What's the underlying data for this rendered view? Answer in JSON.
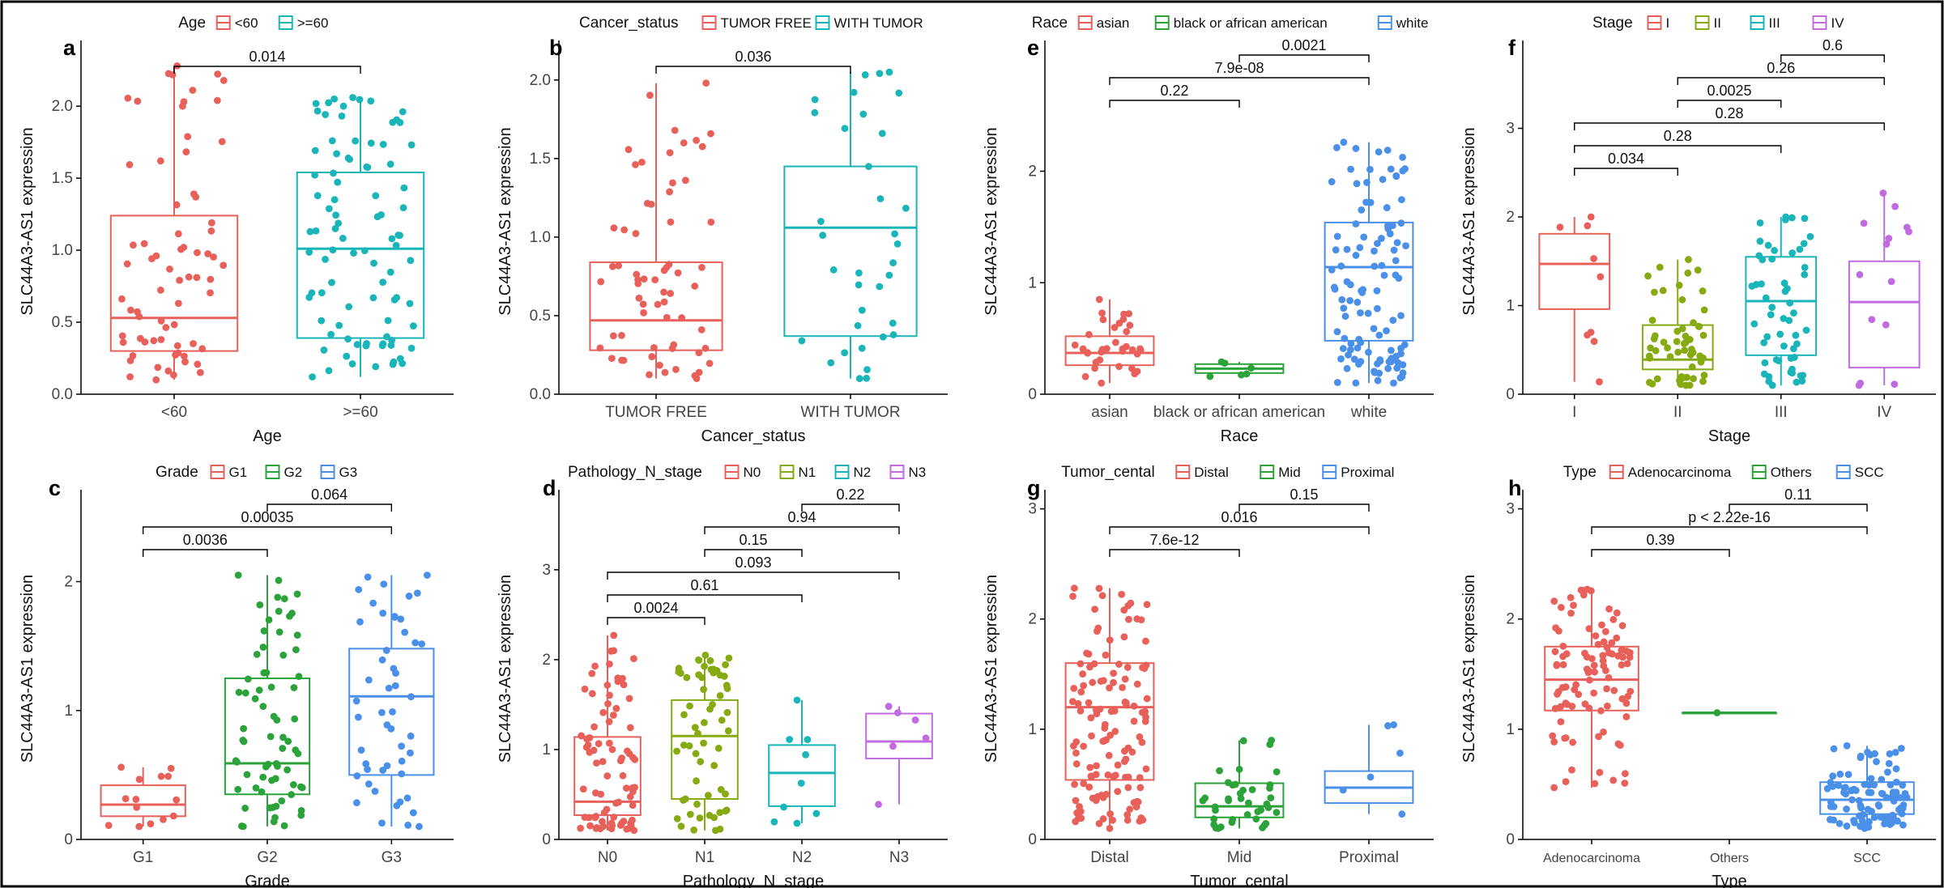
{
  "colors": {
    "red": "#E8605A",
    "green": "#2BA33A",
    "cyan": "#19B5B8",
    "blue": "#4A8FE8",
    "olive": "#87AA13",
    "purple": "#C16BE0"
  },
  "ylabel": "SLC44A3-AS1 expression",
  "chart_data": [
    {
      "type": "box",
      "panel": "a",
      "legend_title": "Age",
      "xlabel": "Age",
      "ylabel": "SLC44A3-AS1 expression",
      "ylim": [
        0,
        2.4
      ],
      "yticks": [
        "0.0",
        "0.5",
        "1.0",
        "1.5",
        "2.0"
      ],
      "categories": [
        "<60",
        ">=60"
      ],
      "colors": [
        "#E8605A",
        "#19B5B8"
      ],
      "boxes": [
        {
          "min": 0.1,
          "q1": 0.3,
          "median": 0.53,
          "q3": 1.24,
          "max": 2.28,
          "n": 70
        },
        {
          "min": 0.12,
          "q1": 0.39,
          "median": 1.01,
          "q3": 1.54,
          "max": 2.06,
          "n": 90
        }
      ],
      "comparisons": [
        {
          "from": 0,
          "to": 1,
          "label": "0.014"
        }
      ]
    },
    {
      "type": "box",
      "panel": "b",
      "legend_title": "Cancer_status",
      "xlabel": "Cancer_status",
      "ylabel": "SLC44A3-AS1 expression",
      "ylim": [
        0,
        2.2
      ],
      "yticks": [
        "0.0",
        "0.5",
        "1.0",
        "1.5",
        "2.0"
      ],
      "categories": [
        "TUMOR FREE",
        "WITH TUMOR"
      ],
      "colors": [
        "#E8605A",
        "#19B5B8"
      ],
      "boxes": [
        {
          "min": 0.1,
          "q1": 0.28,
          "median": 0.47,
          "q3": 0.84,
          "max": 1.98,
          "n": 65
        },
        {
          "min": 0.1,
          "q1": 0.37,
          "median": 1.06,
          "q3": 1.45,
          "max": 2.05,
          "n": 35
        }
      ],
      "comparisons": [
        {
          "from": 0,
          "to": 1,
          "label": "0.036"
        }
      ]
    },
    {
      "type": "box",
      "panel": "e",
      "legend_title": "Race",
      "xlabel": "Race",
      "ylabel": "SLC44A3-AS1 expression",
      "ylim": [
        0,
        3.1
      ],
      "yticks": [
        "0",
        "1",
        "2"
      ],
      "categories": [
        "asian",
        "black or african american",
        "white"
      ],
      "colors": [
        "#E8605A",
        "#2BA33A",
        "#4A8FE8"
      ],
      "boxes": [
        {
          "min": 0.1,
          "q1": 0.26,
          "median": 0.37,
          "q3": 0.52,
          "max": 0.85,
          "n": 35
        },
        {
          "min": 0.16,
          "q1": 0.19,
          "median": 0.23,
          "q3": 0.27,
          "max": 0.29,
          "n": 6
        },
        {
          "min": 0.1,
          "q1": 0.48,
          "median": 1.14,
          "q3": 1.54,
          "max": 2.26,
          "n": 110
        }
      ],
      "comparisons": [
        {
          "from": 1,
          "to": 2,
          "label": "0.0021"
        },
        {
          "from": 0,
          "to": 2,
          "label": "7.9e-08"
        },
        {
          "from": 0,
          "to": 1,
          "label": "0.22"
        }
      ]
    },
    {
      "type": "box",
      "panel": "f",
      "legend_title": "Stage",
      "xlabel": "Stage",
      "ylabel": "SLC44A3-AS1 expression",
      "ylim": [
        0,
        3.9
      ],
      "yticks": [
        "0",
        "1",
        "2",
        "3"
      ],
      "categories": [
        "I",
        "II",
        "III",
        "IV"
      ],
      "colors": [
        "#E8605A",
        "#87AA13",
        "#19B5B8",
        "#C16BE0"
      ],
      "boxes": [
        {
          "min": 0.14,
          "q1": 0.96,
          "median": 1.47,
          "q3": 1.81,
          "max": 2.0,
          "n": 9
        },
        {
          "min": 0.1,
          "q1": 0.28,
          "median": 0.39,
          "q3": 0.78,
          "max": 1.52,
          "n": 55
        },
        {
          "min": 0.1,
          "q1": 0.44,
          "median": 1.05,
          "q3": 1.55,
          "max": 2.0,
          "n": 55
        },
        {
          "min": 0.1,
          "q1": 0.3,
          "median": 1.04,
          "q3": 1.5,
          "max": 2.27,
          "n": 14
        }
      ],
      "comparisons": [
        {
          "from": 2,
          "to": 3,
          "label": "0.6"
        },
        {
          "from": 1,
          "to": 3,
          "label": "0.26"
        },
        {
          "from": 1,
          "to": 2,
          "label": "0.0025"
        },
        {
          "from": 0,
          "to": 3,
          "label": "0.28"
        },
        {
          "from": 0,
          "to": 2,
          "label": "0.28"
        },
        {
          "from": 0,
          "to": 1,
          "label": "0.034"
        }
      ]
    },
    {
      "type": "box",
      "panel": "c",
      "legend_title": "Grade",
      "xlabel": "Grade",
      "ylabel": "SLC44A3-AS1 expression",
      "ylim": [
        0,
        2.65
      ],
      "yticks": [
        "0",
        "1",
        "2"
      ],
      "categories": [
        "G1",
        "G2",
        "G3"
      ],
      "colors": [
        "#E8605A",
        "#2BA33A",
        "#4A8FE8"
      ],
      "boxes": [
        {
          "min": 0.1,
          "q1": 0.18,
          "median": 0.27,
          "q3": 0.42,
          "max": 0.56,
          "n": 14
        },
        {
          "min": 0.1,
          "q1": 0.35,
          "median": 0.59,
          "q3": 1.25,
          "max": 2.05,
          "n": 70
        },
        {
          "min": 0.1,
          "q1": 0.5,
          "median": 1.11,
          "q3": 1.48,
          "max": 2.05,
          "n": 50
        }
      ],
      "comparisons": [
        {
          "from": 1,
          "to": 2,
          "label": "0.064"
        },
        {
          "from": 0,
          "to": 2,
          "label": "0.00035"
        },
        {
          "from": 0,
          "to": 1,
          "label": "0.0036"
        }
      ]
    },
    {
      "type": "box",
      "panel": "d",
      "legend_title": "Pathology_N_stage",
      "xlabel": "Pathology_N_stage",
      "ylabel": "SLC44A3-AS1 expression",
      "ylim": [
        0,
        3.8
      ],
      "yticks": [
        "0",
        "1",
        "2",
        "3"
      ],
      "categories": [
        "N0",
        "N1",
        "N2",
        "N3"
      ],
      "colors": [
        "#E8605A",
        "#87AA13",
        "#19B5B8",
        "#C16BE0"
      ],
      "boxes": [
        {
          "min": 0.1,
          "q1": 0.27,
          "median": 0.42,
          "q3": 1.14,
          "max": 2.27,
          "n": 80
        },
        {
          "min": 0.1,
          "q1": 0.45,
          "median": 1.15,
          "q3": 1.55,
          "max": 2.05,
          "n": 60
        },
        {
          "min": 0.18,
          "q1": 0.37,
          "median": 0.74,
          "q3": 1.05,
          "max": 1.55,
          "n": 9
        },
        {
          "min": 0.39,
          "q1": 0.9,
          "median": 1.09,
          "q3": 1.4,
          "max": 1.48,
          "n": 6
        }
      ],
      "comparisons": [
        {
          "from": 2,
          "to": 3,
          "label": "0.22"
        },
        {
          "from": 1,
          "to": 3,
          "label": "0.94"
        },
        {
          "from": 1,
          "to": 2,
          "label": "0.15"
        },
        {
          "from": 0,
          "to": 3,
          "label": "0.093"
        },
        {
          "from": 0,
          "to": 2,
          "label": "0.61"
        },
        {
          "from": 0,
          "to": 1,
          "label": "0.0024"
        }
      ]
    },
    {
      "type": "box",
      "panel": "g",
      "legend_title": "Tumor_cental",
      "xlabel": "Tumor_cental",
      "ylabel": "SLC44A3-AS1 expression",
      "ylim": [
        0,
        3.1
      ],
      "yticks": [
        "0",
        "1",
        "2",
        "3"
      ],
      "categories": [
        "Distal",
        "Mid",
        "Proximal"
      ],
      "colors": [
        "#E8605A",
        "#2BA33A",
        "#4A8FE8"
      ],
      "boxes": [
        {
          "min": 0.1,
          "q1": 0.54,
          "median": 1.2,
          "q3": 1.6,
          "max": 2.28,
          "n": 130
        },
        {
          "min": 0.1,
          "q1": 0.2,
          "median": 0.3,
          "q3": 0.51,
          "max": 0.9,
          "n": 40
        },
        {
          "min": 0.23,
          "q1": 0.33,
          "median": 0.47,
          "q3": 0.62,
          "max": 1.04,
          "n": 6
        }
      ],
      "comparisons": [
        {
          "from": 1,
          "to": 2,
          "label": "0.15"
        },
        {
          "from": 0,
          "to": 2,
          "label": "0.016"
        },
        {
          "from": 0,
          "to": 1,
          "label": "7.6e-12"
        }
      ]
    },
    {
      "type": "box",
      "panel": "h",
      "legend_title": "Type",
      "xlabel": "Type",
      "ylabel": "SLC44A3-AS1 expression",
      "ylim": [
        0,
        3.1
      ],
      "yticks": [
        "0",
        "1",
        "2",
        "3"
      ],
      "categories": [
        "Adenocarcinoma",
        "Others",
        "SCC"
      ],
      "colors": [
        "#E8605A",
        "#2BA33A",
        "#4A8FE8"
      ],
      "boxes": [
        {
          "min": 0.47,
          "q1": 1.17,
          "median": 1.45,
          "q3": 1.75,
          "max": 2.27,
          "n": 100
        },
        {
          "min": 1.15,
          "q1": 1.15,
          "median": 1.15,
          "q3": 1.15,
          "max": 1.15,
          "n": 1
        },
        {
          "min": 0.1,
          "q1": 0.23,
          "median": 0.36,
          "q3": 0.52,
          "max": 0.85,
          "n": 100
        }
      ],
      "comparisons": [
        {
          "from": 1,
          "to": 2,
          "label": "0.11"
        },
        {
          "from": 0,
          "to": 2,
          "label": "p < 2.22e-16"
        },
        {
          "from": 0,
          "to": 1,
          "label": "0.39"
        }
      ]
    }
  ]
}
